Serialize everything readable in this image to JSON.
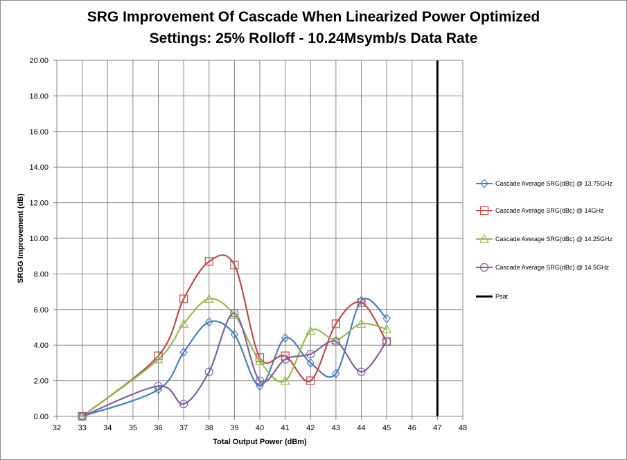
{
  "chart_data": {
    "type": "scatter",
    "title": "SRG Improvement Of Cascade When Linearized Power Optimized",
    "subtitle": "Settings: 25% Rolloff - 10.24Msymb/s Data Rate",
    "xlabel": "Total Output Power (dBm)",
    "ylabel": "SRGG Improvement  (dB)",
    "xlim": [
      32,
      48
    ],
    "ylim": [
      0,
      20
    ],
    "x_ticks": [
      "32",
      "33",
      "34",
      "35",
      "36",
      "37",
      "38",
      "39",
      "40",
      "41",
      "42",
      "43",
      "44",
      "45",
      "46",
      "47",
      "48"
    ],
    "y_ticks": [
      "0.00",
      "2.00",
      "4.00",
      "6.00",
      "8.00",
      "10.00",
      "12.00",
      "14.00",
      "16.00",
      "18.00",
      "20.00"
    ],
    "grid": true,
    "legend_position": "right",
    "series": [
      {
        "name": "Cascade Average SRG(dBc) @ 13.75GHz",
        "color": "#4a7ebb",
        "marker": "diamond",
        "x": [
          33,
          36,
          37,
          38,
          39,
          40,
          41,
          42,
          43,
          44,
          45
        ],
        "y": [
          0.0,
          1.5,
          3.6,
          5.3,
          4.6,
          1.7,
          4.4,
          3.0,
          2.4,
          6.5,
          5.5
        ]
      },
      {
        "name": "Cascade Average SRG(dBc) @ 14GHz",
        "color": "#be4b48",
        "marker": "square",
        "x": [
          33,
          36,
          37,
          38,
          39,
          40,
          41,
          42,
          43,
          44,
          45
        ],
        "y": [
          0.0,
          3.4,
          6.6,
          8.7,
          8.5,
          3.3,
          3.4,
          2.0,
          5.2,
          6.4,
          4.2
        ]
      },
      {
        "name": "Cascade Average SRG(dBc) @ 14.25GHz",
        "color": "#98b954",
        "marker": "triangle",
        "x": [
          33,
          36,
          37,
          38,
          39,
          40,
          41,
          42,
          43,
          44,
          45
        ],
        "y": [
          0.0,
          3.2,
          5.2,
          6.6,
          5.7,
          3.1,
          2.0,
          4.8,
          4.3,
          5.2,
          4.9
        ]
      },
      {
        "name": "Cascade Average SRG(dBc) @ 14.5GHz",
        "color": "#7d60a0",
        "marker": "circle",
        "x": [
          33,
          36,
          37,
          38,
          39,
          40,
          41,
          42,
          43,
          44,
          45
        ],
        "y": [
          0.0,
          1.7,
          0.7,
          2.5,
          5.8,
          2.0,
          3.2,
          3.5,
          4.2,
          2.5,
          4.2
        ]
      }
    ],
    "reference_line": {
      "name": "Psat",
      "color": "#000000",
      "x": 47
    }
  }
}
